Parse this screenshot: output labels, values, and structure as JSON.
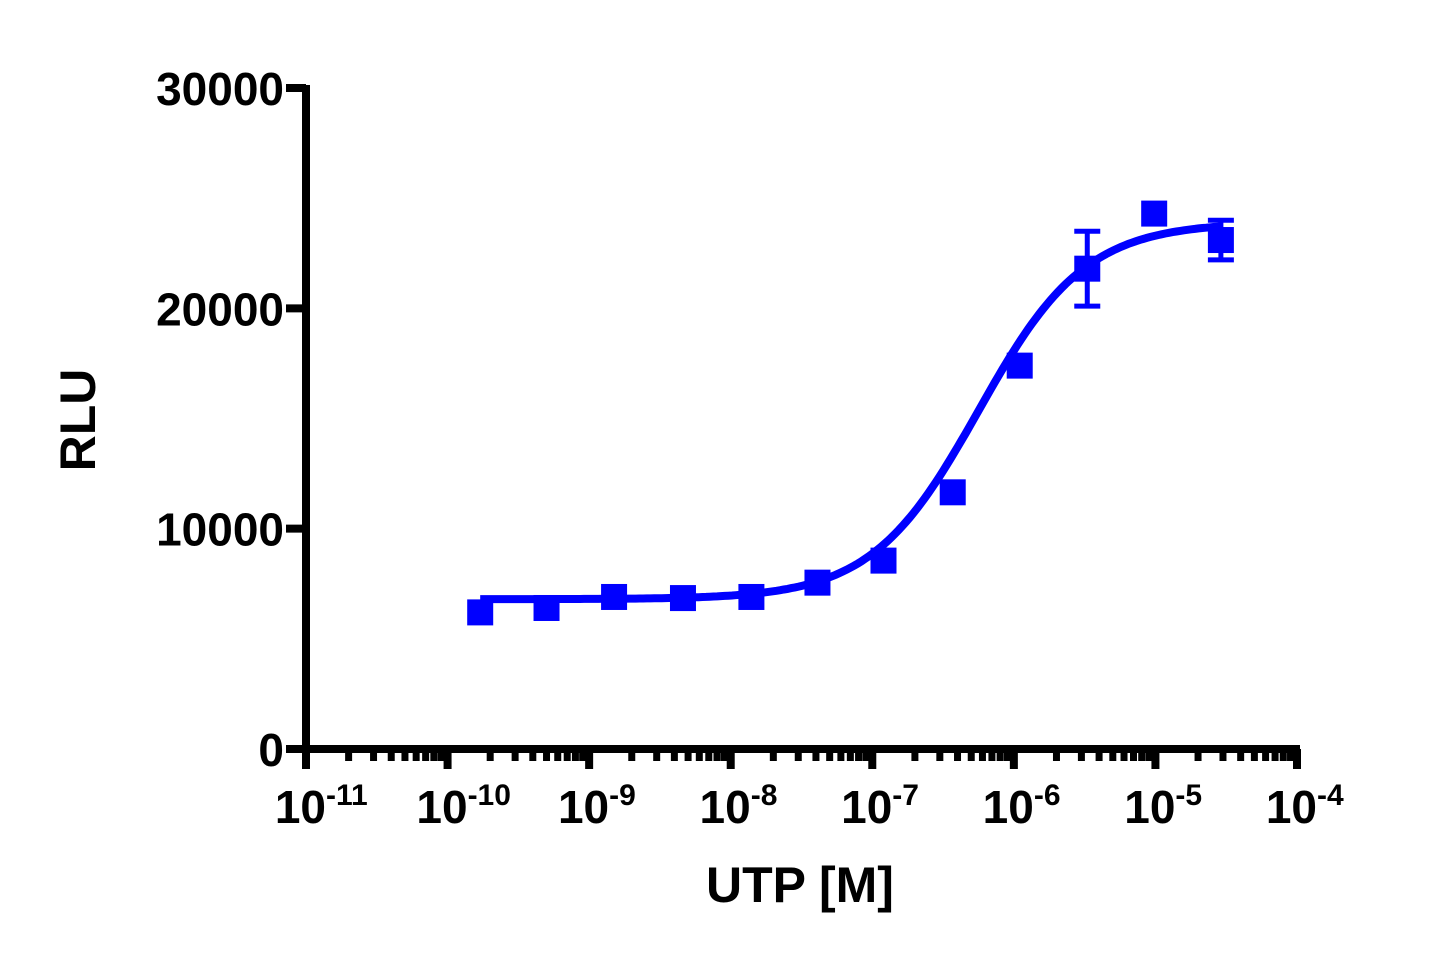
{
  "chart_data": {
    "type": "scatter",
    "title": "",
    "xlabel": "UTP [M]",
    "ylabel": "RLU",
    "xscale": "log",
    "xlim": [
      1e-11,
      0.0001
    ],
    "ylim": [
      0,
      30000
    ],
    "grid": false,
    "legend": null,
    "x_ticks": [
      {
        "base": "10",
        "exp": "-11",
        "value": 1e-11
      },
      {
        "base": "10",
        "exp": "-10",
        "value": 1e-10
      },
      {
        "base": "10",
        "exp": "-9",
        "value": 1e-09
      },
      {
        "base": "10",
        "exp": "-8",
        "value": 1e-08
      },
      {
        "base": "10",
        "exp": "-7",
        "value": 1e-07
      },
      {
        "base": "10",
        "exp": "-6",
        "value": 1e-06
      },
      {
        "base": "10",
        "exp": "-5",
        "value": 1e-05
      },
      {
        "base": "10",
        "exp": "-4",
        "value": 0.0001
      }
    ],
    "y_ticks": [
      "0",
      "10000",
      "20000",
      "30000"
    ],
    "y_tick_values": [
      0,
      10000,
      20000,
      30000
    ],
    "series": [
      {
        "name": "UTP",
        "color": "#0000ff",
        "marker": "square",
        "x": [
          1.7e-10,
          5e-10,
          1.5e-09,
          4.6e-09,
          1.4e-08,
          4.1e-08,
          1.2e-07,
          3.7e-07,
          1.1e-06,
          3.3e-06,
          9.8e-06,
          2.9e-05
        ],
        "y": [
          6200,
          6400,
          6900,
          6850,
          6900,
          7550,
          8550,
          11650,
          17400,
          21800,
          24300,
          23100
        ],
        "error": [
          0,
          0,
          0,
          0,
          0,
          0,
          0,
          0,
          0,
          1700,
          0,
          900
        ]
      }
    ],
    "fit": {
      "type": "sigmoidal dose-response",
      "color": "#0000ff",
      "bottom": 6800,
      "top": 23900,
      "logEC50": -6.25,
      "hillslope": 1.15,
      "x_range": [
        1.7e-10,
        2.9e-05
      ]
    }
  }
}
